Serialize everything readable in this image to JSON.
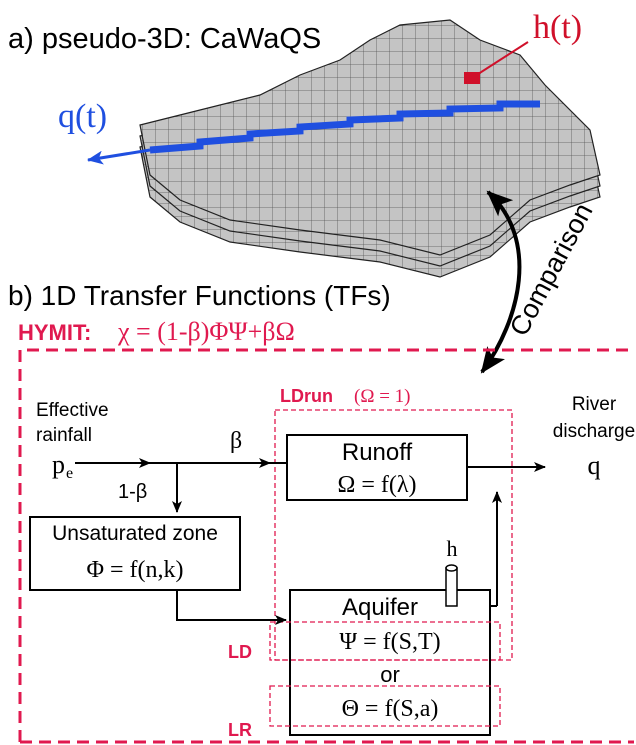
{
  "panel_a": {
    "title": "a) pseudo-3D: CaWaQS",
    "h_label": "h(t)",
    "q_label": "q(t)"
  },
  "comparison": "Comparison",
  "panel_b": {
    "title": "b) 1D Transfer Functions (TFs)",
    "hymit": {
      "label": "HYMIT:",
      "equation": "χ = (1-β)ΦΨ+βΩ"
    },
    "input": {
      "lines": [
        "Effective",
        "rainfall"
      ],
      "symbol": "p",
      "subscript": "e"
    },
    "beta": "β",
    "one_minus_beta": "1-β",
    "ldrun": {
      "label": "LDrun",
      "condition": "(Ω = 1)"
    },
    "runoff": {
      "title": "Runoff",
      "equation": "Ω = f(λ)"
    },
    "output": {
      "lines": [
        "River",
        "discharge"
      ],
      "symbol": "q"
    },
    "unsaturated": {
      "title": "Unsaturated zone",
      "equation": "Φ = f(n,k)"
    },
    "piezometer": "h",
    "aquifer": {
      "title": "Aquifer",
      "equation_ld": "Ψ = f(S,T)",
      "or": "or",
      "equation_lr": "Θ = f(S,a)"
    },
    "ld": "LD",
    "lr": "LR"
  }
}
